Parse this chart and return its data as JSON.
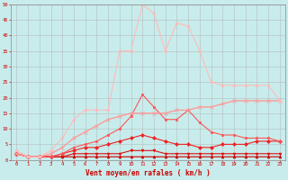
{
  "xlabel": "Vent moyen/en rafales ( km/h )",
  "background_color": "#c8ecec",
  "grid_color": "#b0b0b0",
  "xlim": [
    -0.5,
    23.5
  ],
  "ylim": [
    0,
    50
  ],
  "yticks": [
    0,
    5,
    10,
    15,
    20,
    25,
    30,
    35,
    40,
    45,
    50
  ],
  "xticks": [
    0,
    1,
    2,
    3,
    4,
    5,
    6,
    7,
    8,
    9,
    10,
    11,
    12,
    13,
    14,
    15,
    16,
    17,
    18,
    19,
    20,
    21,
    22,
    23
  ],
  "series": [
    {
      "x": [
        0,
        1,
        2,
        3,
        4,
        5,
        6,
        7,
        8,
        9,
        10,
        11,
        12,
        13,
        14,
        15,
        16,
        17,
        18,
        19,
        20,
        21,
        22,
        23
      ],
      "y": [
        2,
        1,
        1,
        1,
        1,
        1,
        1,
        1,
        1,
        1,
        1,
        1,
        1,
        1,
        1,
        1,
        1,
        1,
        1,
        1,
        1,
        1,
        1,
        1
      ],
      "color": "#cc0000",
      "lw": 0.8,
      "marker": "^",
      "ms": 2.0,
      "ls": "-"
    },
    {
      "x": [
        0,
        1,
        2,
        3,
        4,
        5,
        6,
        7,
        8,
        9,
        10,
        11,
        12,
        13,
        14,
        15,
        16,
        17,
        18,
        19,
        20,
        21,
        22,
        23
      ],
      "y": [
        2,
        1,
        1,
        1,
        1,
        2,
        2,
        2,
        2,
        2,
        3,
        3,
        3,
        2,
        2,
        2,
        2,
        2,
        2,
        2,
        2,
        2,
        2,
        2
      ],
      "color": "#dd1111",
      "lw": 0.8,
      "marker": "v",
      "ms": 2.0,
      "ls": "-"
    },
    {
      "x": [
        0,
        1,
        2,
        3,
        4,
        5,
        6,
        7,
        8,
        9,
        10,
        11,
        12,
        13,
        14,
        15,
        16,
        17,
        18,
        19,
        20,
        21,
        22,
        23
      ],
      "y": [
        2,
        1,
        1,
        1,
        2,
        3,
        4,
        4,
        5,
        6,
        7,
        8,
        7,
        6,
        5,
        5,
        4,
        4,
        5,
        5,
        5,
        6,
        6,
        6
      ],
      "color": "#ee2222",
      "lw": 0.8,
      "marker": "D",
      "ms": 2.0,
      "ls": "-"
    },
    {
      "x": [
        0,
        1,
        2,
        3,
        4,
        5,
        6,
        7,
        8,
        9,
        10,
        11,
        12,
        13,
        14,
        15,
        16,
        17,
        18,
        19,
        20,
        21,
        22,
        23
      ],
      "y": [
        2,
        1,
        1,
        1,
        2,
        4,
        5,
        6,
        8,
        10,
        14,
        21,
        17,
        13,
        13,
        16,
        12,
        9,
        8,
        8,
        7,
        7,
        7,
        6
      ],
      "color": "#ff5555",
      "lw": 0.8,
      "marker": "s",
      "ms": 2.0,
      "ls": "-"
    },
    {
      "x": [
        0,
        1,
        2,
        3,
        4,
        5,
        6,
        7,
        8,
        9,
        10,
        11,
        12,
        13,
        14,
        15,
        16,
        17,
        18,
        19,
        20,
        21,
        22,
        23
      ],
      "y": [
        2,
        1,
        1,
        2,
        4,
        7,
        9,
        11,
        13,
        14,
        15,
        15,
        15,
        15,
        16,
        16,
        17,
        17,
        18,
        19,
        19,
        19,
        19,
        19
      ],
      "color": "#ff9999",
      "lw": 1.0,
      "marker": "x",
      "ms": 2.5,
      "ls": "-"
    },
    {
      "x": [
        0,
        1,
        2,
        3,
        4,
        5,
        6,
        7,
        8,
        9,
        10,
        11,
        12,
        13,
        14,
        15,
        16,
        17,
        18,
        19,
        20,
        21,
        22,
        23
      ],
      "y": [
        3,
        1,
        1,
        3,
        7,
        13,
        16,
        16,
        16,
        35,
        35,
        50,
        47,
        35,
        44,
        43,
        35,
        25,
        24,
        24,
        24,
        24,
        24,
        19
      ],
      "color": "#ffbbbb",
      "lw": 0.8,
      "marker": "o",
      "ms": 2.0,
      "ls": "-"
    }
  ]
}
